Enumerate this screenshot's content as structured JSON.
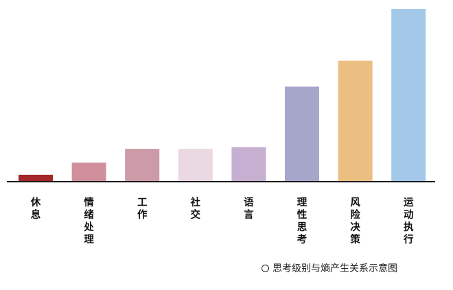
{
  "chart_data": {
    "type": "bar",
    "categories": [
      "休息",
      "情绪处理",
      "工作",
      "社交",
      "语言",
      "理性思考",
      "风险决策",
      "运动执行"
    ],
    "values": [
      4,
      11,
      19,
      19,
      20,
      55,
      70,
      100
    ],
    "colors": [
      "#a3262a",
      "#d08f9b",
      "#cd9aa8",
      "#ead8e2",
      "#c6afd1",
      "#a6a5ca",
      "#ebbf82",
      "#a3c8e9"
    ],
    "ylim": [
      0,
      100
    ],
    "grid": false,
    "axes": "x-axis only, no y-axis, no tick values"
  },
  "caption": {
    "icon": "circle-outline-icon",
    "text": "思考级别与熵产生关系示意图"
  }
}
